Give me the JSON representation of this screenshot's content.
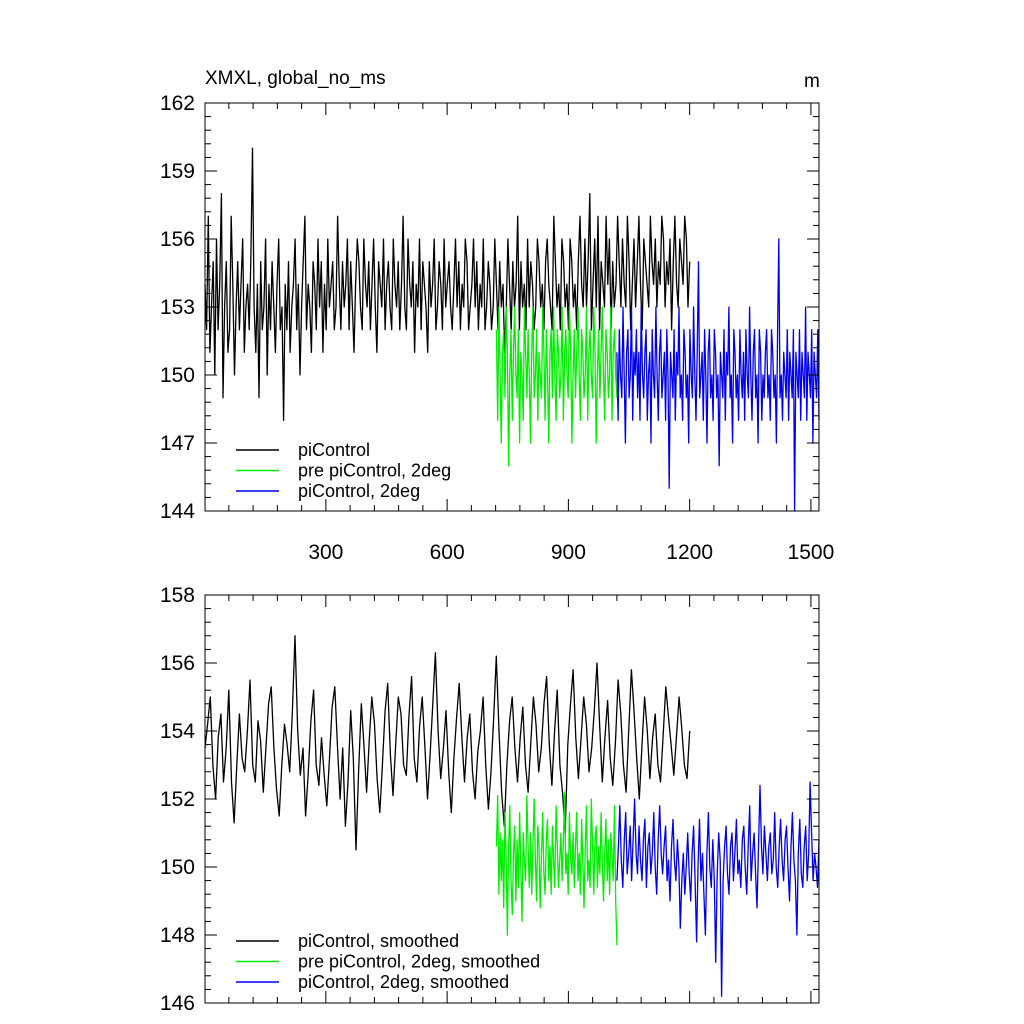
{
  "chart_data": [
    {
      "type": "line",
      "title_left": "XMXL, global_no_ms",
      "title_right": "m",
      "xlim": [
        1,
        1520
      ],
      "ylim": [
        144,
        162
      ],
      "xticks": [
        300,
        600,
        900,
        1200,
        1500
      ],
      "xtick_labels": [
        "300",
        "600",
        "900",
        "1200",
        "1500"
      ],
      "yticks": [
        144,
        147,
        150,
        153,
        156,
        159,
        162
      ],
      "ytick_labels": [
        "144",
        "147",
        "150",
        "153",
        "156",
        "159",
        "162"
      ],
      "legend_position": "bottom-left",
      "series": [
        {
          "name": "piControl",
          "color": "#000000",
          "x_start": 1,
          "x_end": 1200,
          "values": [
            154,
            152,
            157,
            151,
            153,
            155,
            150,
            156,
            152,
            154,
            158,
            149,
            153,
            155,
            151,
            152,
            157,
            154,
            150,
            153,
            155,
            152,
            154,
            156,
            151,
            153,
            154,
            152,
            155,
            160,
            153,
            151,
            154,
            149,
            155,
            152,
            153,
            156,
            150,
            154,
            152,
            155,
            153,
            151,
            154,
            156,
            152,
            153,
            148,
            154,
            152,
            155,
            151,
            153,
            154,
            156,
            152,
            154,
            150,
            153,
            155,
            157,
            152,
            154,
            153,
            151,
            155,
            154,
            152,
            156,
            153,
            155,
            151,
            154,
            152,
            156,
            153,
            154,
            155,
            152,
            153,
            157,
            154,
            152,
            155,
            153,
            154,
            156,
            152,
            155,
            153,
            151,
            154,
            156,
            155,
            153,
            152,
            156,
            154,
            153,
            155,
            152,
            154,
            156,
            153,
            151,
            155,
            154,
            153,
            156,
            152,
            154,
            155,
            153,
            152,
            156,
            154,
            153,
            155,
            152,
            154,
            157,
            153,
            152,
            156,
            154,
            153,
            155,
            151,
            154,
            153,
            156,
            152,
            155,
            154,
            153,
            151,
            155,
            153,
            154,
            156,
            152,
            153,
            155,
            154,
            152,
            156,
            153,
            154,
            155,
            153,
            152,
            154,
            156,
            153,
            155,
            152,
            154,
            153,
            156,
            155,
            152,
            153,
            154,
            156,
            153,
            155,
            152,
            154,
            153,
            156,
            152,
            153,
            155,
            154,
            152,
            153,
            156,
            154,
            152,
            155,
            153,
            154,
            151,
            153,
            156,
            154,
            152,
            155,
            153,
            154,
            157,
            152,
            155,
            153,
            154,
            152,
            156,
            153,
            155,
            154,
            152,
            153,
            156,
            155,
            153,
            154,
            152,
            155,
            156,
            154,
            153,
            152,
            157,
            155,
            153,
            154,
            152,
            156,
            155,
            153,
            154,
            152,
            156,
            155,
            153,
            154,
            152,
            155,
            157,
            154,
            153,
            156,
            153,
            155,
            158,
            152,
            154,
            156,
            153,
            157,
            152,
            155,
            154,
            153,
            157,
            154,
            156,
            152,
            155,
            153,
            154,
            157,
            155,
            153,
            156,
            154,
            153,
            157,
            155,
            152,
            154,
            156,
            153,
            155,
            157,
            154,
            152,
            156,
            155,
            154,
            153,
            157,
            155,
            154,
            156,
            153,
            155,
            154,
            157,
            156,
            153,
            155,
            154,
            156,
            152,
            155,
            157,
            154,
            153,
            156,
            155,
            154,
            157,
            156,
            153,
            155
          ]
        },
        {
          "name": "pre piControl, 2deg",
          "color": "#00ee00",
          "x_start": 722,
          "x_end": 1020,
          "values": [
            152,
            148,
            153,
            150,
            147,
            151,
            152,
            149,
            153,
            151,
            146,
            150,
            152,
            148,
            151,
            153,
            150,
            149,
            152,
            147,
            151,
            150,
            148,
            153,
            151,
            149,
            152,
            150,
            147,
            151,
            153,
            149,
            150,
            152,
            148,
            151,
            150,
            149,
            153,
            151,
            148,
            152,
            150,
            147,
            151,
            152,
            149,
            153,
            150,
            148,
            152,
            151,
            149,
            150,
            153,
            148,
            151,
            152,
            150,
            149,
            153,
            151,
            147,
            150,
            152,
            149,
            151,
            153,
            150,
            148,
            152,
            151,
            149,
            150,
            153,
            148,
            151,
            152,
            150,
            149,
            153,
            151,
            147,
            150,
            152,
            149,
            151,
            153,
            150,
            148,
            152,
            151,
            149,
            150,
            153,
            148,
            151,
            152,
            150,
            149
          ]
        },
        {
          "name": "piControl, 2deg",
          "color": "#0000ee",
          "x_start": 1020,
          "x_end": 1520,
          "values": [
            151,
            148,
            152,
            150,
            149,
            153,
            150,
            147,
            151,
            152,
            149,
            150,
            153,
            148,
            151,
            150,
            152,
            149,
            151,
            148,
            153,
            150,
            149,
            151,
            152,
            148,
            150,
            151,
            147,
            152,
            150,
            149,
            153,
            150,
            148,
            151,
            152,
            149,
            150,
            151,
            148,
            152,
            150,
            145,
            151,
            150,
            149,
            152,
            148,
            151,
            150,
            153,
            149,
            150,
            148,
            152,
            151,
            149,
            150,
            147,
            152,
            150,
            149,
            153,
            150,
            148,
            151,
            155,
            149,
            150,
            151,
            148,
            152,
            150,
            147,
            151,
            152,
            149,
            150,
            148,
            152,
            151,
            149,
            150,
            146,
            151,
            150,
            149,
            152,
            148,
            151,
            150,
            153,
            149,
            150,
            147,
            152,
            151,
            149,
            150,
            148,
            152,
            150,
            149,
            151,
            148,
            152,
            150,
            149,
            153,
            150,
            148,
            151,
            152,
            149,
            150,
            147,
            152,
            151,
            148,
            150,
            149,
            151,
            152,
            149,
            150,
            148,
            152,
            151,
            149,
            150,
            147,
            152,
            156,
            149,
            150,
            148,
            151,
            150,
            149,
            152,
            148,
            151,
            150,
            149,
            152,
            144,
            151,
            150,
            149,
            152,
            148,
            151,
            150,
            149,
            153,
            148,
            151,
            150,
            149,
            152,
            147,
            151,
            150,
            149,
            152,
            148
          ]
        }
      ]
    },
    {
      "type": "line",
      "xlim": [
        1,
        1520
      ],
      "ylim": [
        146,
        158
      ],
      "xticks": [
        300,
        600,
        900,
        1200,
        1500
      ],
      "yticks": [
        146,
        148,
        150,
        152,
        154,
        156,
        158
      ],
      "ytick_labels": [
        "146",
        "148",
        "150",
        "152",
        "154",
        "156",
        "158"
      ],
      "legend_position": "bottom-left",
      "series": [
        {
          "name": "piControl, smoothed",
          "color": "#000000",
          "x_start": 1,
          "x_end": 1200,
          "values": [
            153.5,
            154.2,
            155.0,
            153.0,
            152.0,
            153.8,
            154.5,
            152.5,
            153.5,
            155.2,
            152.5,
            151.3,
            153.0,
            154.5,
            153.2,
            152.8,
            154.0,
            155.5,
            153.0,
            152.5,
            154.3,
            153.7,
            152.2,
            153.5,
            154.8,
            155.3,
            153.5,
            152.3,
            151.5,
            153.0,
            154.2,
            153.6,
            152.8,
            154.6,
            156.8,
            154.0,
            152.7,
            153.5,
            151.5,
            152.8,
            154.3,
            155.2,
            153.0,
            152.4,
            153.8,
            152.7,
            151.8,
            153.2,
            154.7,
            155.3,
            153.6,
            152.0,
            153.5,
            151.2,
            152.5,
            154.6,
            153.2,
            150.5,
            152.8,
            154.8,
            153.6,
            152.2,
            153.7,
            155.0,
            154.2,
            152.6,
            151.6,
            153.0,
            154.6,
            155.4,
            153.3,
            152.1,
            153.6,
            155.0,
            154.5,
            153.0,
            152.7,
            154.4,
            155.6,
            153.2,
            152.5,
            154.1,
            155.0,
            153.6,
            152.0,
            153.3,
            154.8,
            156.3,
            154.0,
            152.6,
            153.5,
            154.6,
            152.8,
            151.6,
            153.2,
            154.4,
            155.4,
            153.8,
            152.5,
            153.8,
            154.5,
            152.8,
            152.0,
            153.4,
            154.0,
            155.0,
            153.0,
            151.7,
            152.8,
            154.4,
            156.2,
            154.0,
            152.2,
            151.2,
            153.0,
            154.3,
            155.0,
            153.5,
            152.5,
            153.8,
            154.7,
            153.0,
            152.2,
            153.6,
            155.0,
            154.2,
            152.8,
            153.5,
            154.8,
            155.6,
            153.6,
            152.4,
            154.0,
            155.2,
            153.0,
            152.2,
            151.0,
            153.6,
            154.8,
            155.8,
            153.8,
            152.6,
            153.8,
            155.0,
            154.2,
            152.8,
            153.5,
            154.6,
            156.0,
            154.2,
            152.5,
            153.8,
            154.9,
            153.2,
            152.4,
            153.7,
            155.5,
            154.5,
            153.0,
            152.2,
            154.0,
            155.8,
            154.6,
            153.2,
            152.0,
            153.6,
            155.0,
            154.0,
            152.6,
            153.8,
            154.5,
            153.0,
            152.5,
            153.9,
            155.3,
            154.4,
            153.6,
            152.7,
            153.8,
            155.0,
            154.1,
            153.0,
            152.6,
            154.0
          ]
        },
        {
          "name": "pre piControl, 2deg, smoothed",
          "color": "#00ee00",
          "x_start": 722,
          "x_end": 1020,
          "values": [
            150.6,
            152.1,
            149.2,
            151.0,
            149.6,
            150.8,
            148.8,
            151.6,
            150.2,
            148.0,
            150.6,
            151.8,
            149.6,
            148.6,
            150.4,
            151.2,
            149.0,
            150.8,
            149.4,
            151.6,
            150.0,
            148.4,
            151.0,
            150.2,
            149.6,
            152.1,
            150.6,
            149.4,
            151.0,
            149.2,
            150.6,
            152.0,
            150.2,
            149.0,
            151.2,
            150.6,
            148.8,
            150.4,
            151.6,
            149.8,
            149.2,
            150.8,
            151.4,
            149.6,
            150.6,
            149.2,
            151.2,
            150.2,
            149.4,
            151.8,
            150.6,
            149.4,
            150.2,
            151.0,
            149.6,
            150.8,
            152.2,
            149.8,
            150.4,
            149.2,
            151.6,
            150.2,
            149.8,
            151.0,
            149.4,
            150.6,
            151.6,
            149.6,
            150.4,
            149.2,
            151.4,
            150.2,
            148.8,
            150.6,
            151.8,
            149.6,
            150.2,
            149.4,
            152.0,
            150.6,
            149.2,
            150.8,
            151.2,
            149.4,
            150.6,
            149.8,
            151.6,
            150.2,
            149.0,
            150.4,
            151.4,
            149.6,
            150.8,
            149.2,
            151.0,
            150.4,
            149.6,
            151.8,
            149.0,
            147.7
          ]
        },
        {
          "name": "piControl, 2deg, smoothed",
          "color": "#0000ee",
          "x_start": 1020,
          "x_end": 1520,
          "values": [
            149.6,
            150.6,
            151.8,
            150.2,
            149.4,
            150.8,
            151.6,
            149.8,
            150.4,
            151.2,
            149.6,
            150.8,
            152.0,
            150.4,
            149.8,
            151.2,
            150.2,
            149.6,
            150.8,
            151.4,
            149.4,
            150.6,
            151.0,
            149.8,
            150.4,
            151.6,
            150.0,
            149.2,
            150.8,
            151.8,
            150.4,
            149.8,
            150.6,
            151.2,
            149.6,
            150.2,
            149.0,
            150.6,
            151.4,
            150.2,
            149.6,
            150.8,
            150.0,
            148.2,
            149.6,
            150.4,
            149.2,
            150.0,
            151.0,
            149.8,
            149.0,
            150.4,
            151.2,
            149.6,
            147.8,
            150.0,
            151.4,
            149.6,
            150.4,
            149.2,
            148.0,
            150.4,
            151.6,
            150.0,
            149.4,
            150.8,
            149.6,
            147.2,
            149.8,
            151.0,
            150.2,
            146.2,
            149.6,
            150.6,
            151.2,
            149.8,
            149.2,
            150.6,
            151.0,
            149.6,
            150.4,
            151.4,
            149.8,
            150.2,
            149.4,
            150.8,
            151.2,
            150.0,
            149.2,
            150.6,
            151.8,
            149.6,
            150.4,
            151.0,
            149.8,
            148.8,
            150.6,
            152.4,
            150.6,
            149.8,
            151.2,
            150.4,
            149.6,
            150.6,
            151.0,
            149.8,
            150.2,
            151.6,
            150.0,
            149.4,
            150.6,
            151.4,
            150.2,
            149.6,
            150.8,
            151.2,
            150.0,
            149.0,
            150.6,
            151.6,
            150.2,
            149.6,
            148.0,
            150.4,
            151.4,
            149.8,
            149.4,
            150.6,
            151.2,
            149.6,
            150.4,
            152.5,
            151.0,
            149.6,
            150.4,
            150.0,
            149.4,
            150.8
          ]
        }
      ]
    }
  ]
}
